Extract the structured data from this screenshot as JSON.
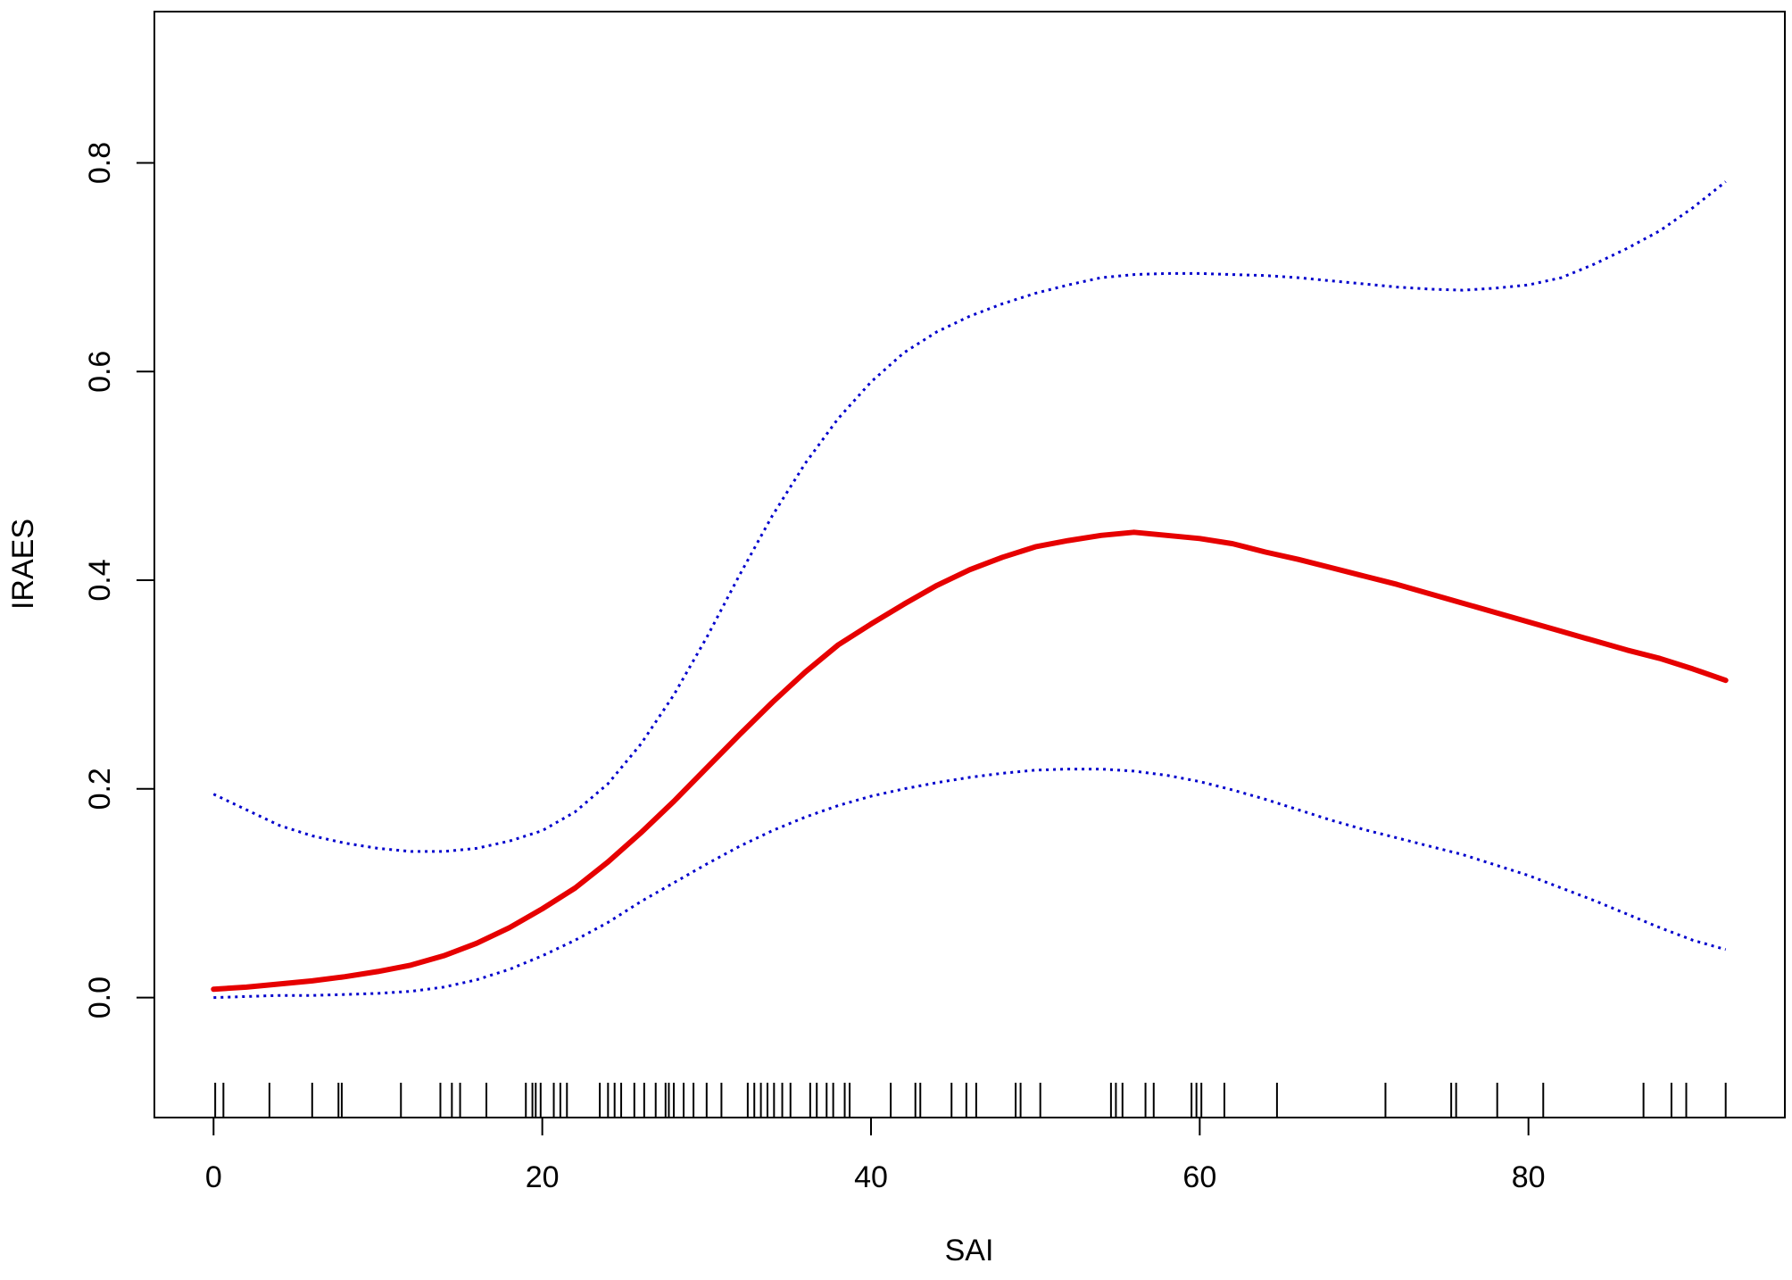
{
  "chart_data": {
    "type": "line",
    "title": "",
    "xlabel": "SAI",
    "ylabel": "IRAES",
    "xlim": [
      -3.6,
      95.6
    ],
    "ylim": [
      -0.115,
      0.945
    ],
    "x_ticks": [
      0,
      20,
      40,
      60,
      80
    ],
    "x_tick_labels": [
      "0",
      "20",
      "40",
      "60",
      "80"
    ],
    "y_ticks": [
      0.0,
      0.2,
      0.4,
      0.6,
      0.8
    ],
    "y_tick_labels": [
      "0.0",
      "0.2",
      "0.4",
      "0.6",
      "0.8"
    ],
    "grid": false,
    "legend": "none",
    "series": [
      {
        "role": "fit",
        "color": "#e60000",
        "style": "solid",
        "x": [
          0,
          2,
          4,
          6,
          8,
          10,
          12,
          14,
          16,
          18,
          20,
          22,
          24,
          26,
          28,
          30,
          32,
          34,
          36,
          38,
          40,
          42,
          44,
          46,
          48,
          50,
          52,
          54,
          56,
          58,
          60,
          62,
          64,
          66,
          68,
          70,
          72,
          74,
          76,
          78,
          80,
          82,
          84,
          86,
          88,
          90,
          92
        ],
        "y": [
          0.008,
          0.01,
          0.013,
          0.016,
          0.02,
          0.025,
          0.031,
          0.04,
          0.052,
          0.067,
          0.085,
          0.105,
          0.13,
          0.158,
          0.188,
          0.22,
          0.252,
          0.283,
          0.312,
          0.338,
          0.358,
          0.377,
          0.395,
          0.41,
          0.422,
          0.432,
          0.438,
          0.443,
          0.446,
          0.443,
          0.44,
          0.435,
          0.427,
          0.42,
          0.412,
          0.404,
          0.396,
          0.387,
          0.378,
          0.369,
          0.36,
          0.351,
          0.342,
          0.333,
          0.325,
          0.315,
          0.304
        ]
      },
      {
        "role": "upper-ci",
        "color": "#0000cc",
        "style": "dotted",
        "x": [
          0,
          2,
          4,
          6,
          8,
          10,
          12,
          14,
          16,
          18,
          20,
          22,
          24,
          26,
          28,
          30,
          32,
          34,
          36,
          38,
          40,
          42,
          44,
          46,
          48,
          50,
          52,
          54,
          56,
          58,
          60,
          62,
          64,
          66,
          68,
          70,
          72,
          74,
          76,
          78,
          80,
          82,
          84,
          86,
          88,
          90,
          92
        ],
        "y": [
          0.195,
          0.18,
          0.165,
          0.155,
          0.148,
          0.143,
          0.14,
          0.14,
          0.143,
          0.15,
          0.16,
          0.178,
          0.205,
          0.243,
          0.29,
          0.345,
          0.405,
          0.462,
          0.512,
          0.555,
          0.59,
          0.618,
          0.638,
          0.653,
          0.665,
          0.675,
          0.683,
          0.69,
          0.693,
          0.694,
          0.694,
          0.693,
          0.692,
          0.69,
          0.687,
          0.684,
          0.681,
          0.679,
          0.678,
          0.68,
          0.683,
          0.69,
          0.703,
          0.718,
          0.735,
          0.757,
          0.782
        ]
      },
      {
        "role": "lower-ci",
        "color": "#0000cc",
        "style": "dotted",
        "x": [
          0,
          2,
          4,
          6,
          8,
          10,
          12,
          14,
          16,
          18,
          20,
          22,
          24,
          26,
          28,
          30,
          32,
          34,
          36,
          38,
          40,
          42,
          44,
          46,
          48,
          50,
          52,
          54,
          56,
          58,
          60,
          62,
          64,
          66,
          68,
          70,
          72,
          74,
          76,
          78,
          80,
          82,
          84,
          86,
          88,
          90,
          92
        ],
        "y": [
          0.0,
          0.001,
          0.002,
          0.002,
          0.003,
          0.004,
          0.006,
          0.01,
          0.017,
          0.027,
          0.04,
          0.055,
          0.072,
          0.092,
          0.11,
          0.128,
          0.145,
          0.16,
          0.173,
          0.184,
          0.193,
          0.2,
          0.206,
          0.211,
          0.215,
          0.218,
          0.219,
          0.219,
          0.217,
          0.213,
          0.207,
          0.199,
          0.19,
          0.18,
          0.17,
          0.161,
          0.153,
          0.145,
          0.137,
          0.127,
          0.117,
          0.105,
          0.093,
          0.08,
          0.067,
          0.055,
          0.046
        ]
      }
    ],
    "rug": [
      0.1,
      0.6,
      3.4,
      6.0,
      7.6,
      7.8,
      11.4,
      13.8,
      14.5,
      15.0,
      16.6,
      19.0,
      19.4,
      19.6,
      19.9,
      20.7,
      21.1,
      21.5,
      23.5,
      24.0,
      24.4,
      24.8,
      25.6,
      26.2,
      26.9,
      27.5,
      27.7,
      28.0,
      28.6,
      29.2,
      30.0,
      30.9,
      32.5,
      32.9,
      33.3,
      33.7,
      34.1,
      34.6,
      35.1,
      36.3,
      36.7,
      37.3,
      37.7,
      38.4,
      38.7,
      41.2,
      42.7,
      43.0,
      44.9,
      45.8,
      46.4,
      48.8,
      49.1,
      50.3,
      54.6,
      54.9,
      55.3,
      56.7,
      57.2,
      59.5,
      59.8,
      60.1,
      61.5,
      64.7,
      71.3,
      75.3,
      75.6,
      78.1,
      80.9,
      87.0,
      88.7,
      89.6,
      92.0
    ]
  }
}
